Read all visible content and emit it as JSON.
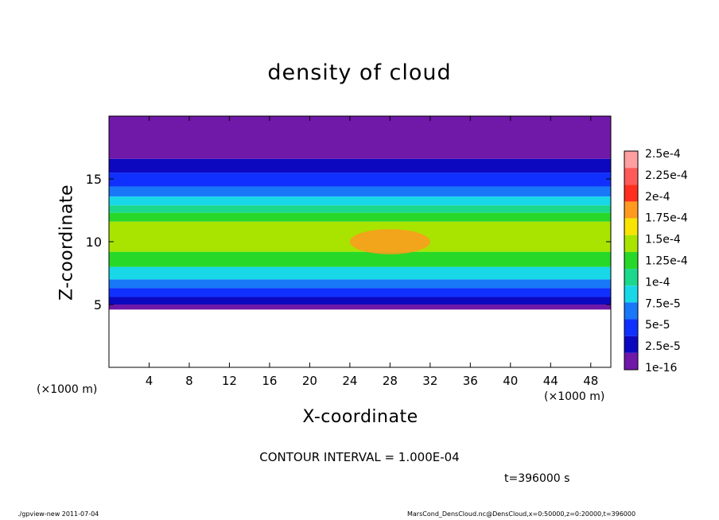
{
  "chart_data": {
    "type": "heatmap",
    "title": "density of cloud",
    "xlabel": "X-coordinate",
    "ylabel": "Z-coordinate",
    "x_unit": "(×1000 m)",
    "x_unit_right": "(×1000 m)",
    "xlim": [
      0,
      50
    ],
    "ylim": [
      0,
      20
    ],
    "x_ticks": [
      4,
      8,
      12,
      16,
      20,
      24,
      28,
      32,
      36,
      40,
      44,
      48
    ],
    "y_ticks": [
      5,
      10,
      15
    ],
    "contour_interval_label": "CONTOUR INTERVAL = 1.000E-04",
    "time_label": "t=396000 s",
    "colorbar": {
      "labels": [
        "2.5e-4",
        "2.25e-4",
        "2e-4",
        "1.75e-4",
        "1.5e-4",
        "1.25e-4",
        "1e-4",
        "7.5e-5",
        "5e-5",
        "2.5e-5",
        "1e-16"
      ],
      "colors": [
        "#ff9f9f",
        "#ff5a5a",
        "#ff2e1e",
        "#ff9a1e",
        "#f8e400",
        "#a8e400",
        "#28d828",
        "#1cd88c",
        "#18d8e8",
        "#1878f8",
        "#1030ff",
        "#0c08c0",
        "#7018a8"
      ]
    },
    "profile": [
      {
        "z": 4.6,
        "level": 12
      },
      {
        "z": 5.0,
        "level": 11
      },
      {
        "z": 5.6,
        "level": 10
      },
      {
        "z": 6.3,
        "level": 9
      },
      {
        "z": 7.0,
        "level": 8
      },
      {
        "z": 8.0,
        "level": 6
      },
      {
        "z": 9.2,
        "level": 5
      },
      {
        "z": 10.6,
        "level": 5
      },
      {
        "z": 11.6,
        "level": 6
      },
      {
        "z": 12.3,
        "level": 7
      },
      {
        "z": 12.9,
        "level": 8
      },
      {
        "z": 13.6,
        "level": 9
      },
      {
        "z": 14.4,
        "level": 10
      },
      {
        "z": 15.5,
        "level": 11
      },
      {
        "z": 16.6,
        "level": 12
      },
      {
        "z": 20.0,
        "level": 12
      }
    ],
    "max_region": {
      "x": 28,
      "z": 10,
      "level": 3
    }
  },
  "footer": {
    "left": "./gpview-new   2011-07-04",
    "right": "MarsCond_DensCloud.nc@DensCloud,x=0:50000,z=0:20000,t=396000"
  }
}
